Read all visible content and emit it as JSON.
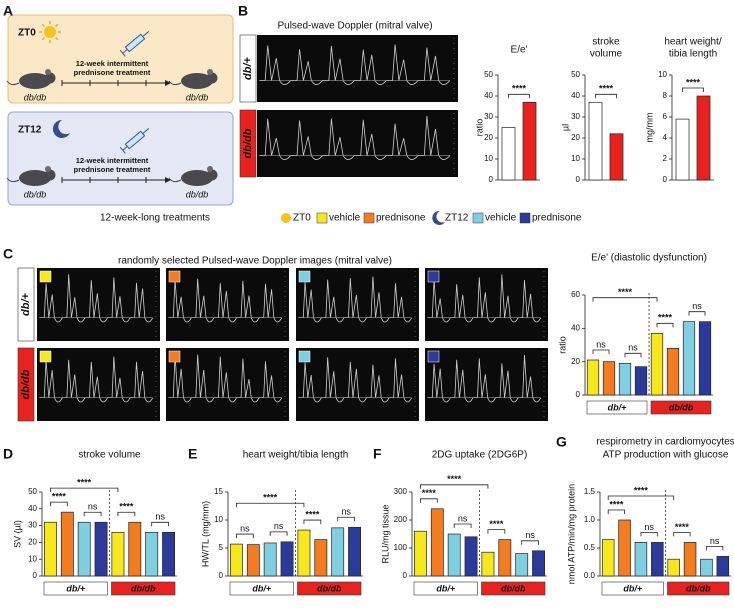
{
  "panels": [
    "A",
    "B",
    "C",
    "D",
    "E",
    "F",
    "G"
  ],
  "scheme": {
    "zt0": {
      "label": "ZT0",
      "treatment": [
        "12-week intermittent",
        "prednisone treatment"
      ],
      "mice": [
        "db/db",
        "db/db"
      ]
    },
    "zt12": {
      "label": "ZT12",
      "treatment": [
        "12-week intermittent",
        "prednisone treatment"
      ],
      "mice": [
        "db/db",
        "db/db"
      ]
    }
  },
  "doppler_b": {
    "title": "Pulsed-wave Doppler (mitral valve)",
    "rows": [
      "db/+",
      "db/db"
    ]
  },
  "legend": {
    "title": "12-week-long treatments",
    "items": [
      "ZT0",
      "vehicle",
      "prednisone",
      "ZT12",
      "vehicle",
      "prednisone"
    ]
  },
  "doppler_c": {
    "title": "randomly selected Pulsed-wave Doppler images (mitral valve)",
    "rows": [
      "db/+",
      "db/db"
    ]
  },
  "chart_data": [
    {
      "type": "bar",
      "title": [
        "E/e'"
      ],
      "ylabel": "ratio",
      "categories": [
        null,
        null
      ],
      "values": [
        25,
        37
      ],
      "colors": [
        "#ffffff",
        "#e8231f"
      ],
      "ylim": [
        0,
        50
      ],
      "yticks": [
        0,
        10,
        20,
        30,
        40,
        50
      ],
      "annotations": [
        "****"
      ]
    },
    {
      "type": "bar",
      "title": [
        "stroke",
        "volume"
      ],
      "ylabel": "µl",
      "categories": [
        null,
        null
      ],
      "values": [
        37,
        22
      ],
      "colors": [
        "#ffffff",
        "#e8231f"
      ],
      "ylim": [
        0,
        50
      ],
      "yticks": [
        0,
        10,
        20,
        30,
        40,
        50
      ],
      "annotations": [
        "****"
      ]
    },
    {
      "type": "bar",
      "title": [
        "heart weight/",
        "tibia length"
      ],
      "ylabel": "mg/mm",
      "categories": [
        null,
        null
      ],
      "values": [
        5.8,
        8
      ],
      "colors": [
        "#ffffff",
        "#e8231f"
      ],
      "ylim": [
        0,
        10
      ],
      "yticks": [
        0,
        2,
        4,
        6,
        8,
        10
      ],
      "annotations": [
        "****"
      ]
    },
    {
      "type": "bar",
      "title": [
        "E/e' (diastolic dysfunction)"
      ],
      "ylabel": "ratio",
      "categories": [
        null,
        null,
        null,
        null,
        null,
        null,
        null,
        null
      ],
      "values": [
        21,
        20,
        19,
        17,
        37,
        28,
        44,
        44
      ],
      "colors": [
        "#f7e81d",
        "#f37b20",
        "#7fcfe3",
        "#2c3a9a",
        "#f7e81d",
        "#f37b20",
        "#7fcfe3",
        "#2c3a9a"
      ],
      "ylim": [
        0,
        60
      ],
      "yticks": [
        0,
        20,
        40,
        60
      ],
      "annotations": [
        "ns",
        "ns",
        "****",
        "ns",
        "****"
      ],
      "groups": [
        "db/+",
        "db/db"
      ]
    },
    {
      "type": "bar",
      "title": [
        "stroke volume"
      ],
      "ylabel": "SV (µl)",
      "categories": [
        null,
        null,
        null,
        null,
        null,
        null,
        null,
        null
      ],
      "values": [
        32,
        38,
        32,
        32,
        26,
        32,
        26,
        26
      ],
      "colors": [
        "#f7e81d",
        "#f37b20",
        "#7fcfe3",
        "#2c3a9a",
        "#f7e81d",
        "#f37b20",
        "#7fcfe3",
        "#2c3a9a"
      ],
      "ylim": [
        0,
        50
      ],
      "yticks": [
        0,
        10,
        20,
        30,
        40,
        50
      ],
      "annotations": [
        "****",
        "ns",
        "****",
        "ns",
        "****"
      ],
      "groups": [
        "db/+",
        "db/db"
      ]
    },
    {
      "type": "bar",
      "title": [
        "heart weight/tibia length"
      ],
      "ylabel": "HW/TL (mg/mm)",
      "categories": [
        null,
        null,
        null,
        null,
        null,
        null,
        null,
        null
      ],
      "values": [
        5.7,
        5.6,
        5.9,
        6.1,
        8.2,
        6.5,
        8.6,
        8.7
      ],
      "colors": [
        "#f7e81d",
        "#f37b20",
        "#7fcfe3",
        "#2c3a9a",
        "#f7e81d",
        "#f37b20",
        "#7fcfe3",
        "#2c3a9a"
      ],
      "ylim": [
        0,
        15
      ],
      "yticks": [
        0,
        5,
        10,
        15
      ],
      "annotations": [
        "ns",
        "ns",
        "****",
        "ns",
        "****"
      ],
      "groups": [
        "db/+",
        "db/db"
      ]
    },
    {
      "type": "bar",
      "title": [
        "2DG uptake (2DG6P)"
      ],
      "ylabel": "RLU/mg tissue",
      "categories": [
        null,
        null,
        null,
        null,
        null,
        null,
        null,
        null
      ],
      "values": [
        160,
        240,
        150,
        140,
        85,
        130,
        80,
        90
      ],
      "colors": [
        "#f7e81d",
        "#f37b20",
        "#7fcfe3",
        "#2c3a9a",
        "#f7e81d",
        "#f37b20",
        "#7fcfe3",
        "#2c3a9a"
      ],
      "ylim": [
        0,
        300
      ],
      "yticks": [
        0,
        100,
        200,
        300
      ],
      "annotations": [
        "****",
        "ns",
        "****",
        "ns",
        "****"
      ],
      "groups": [
        "db/+",
        "db/db"
      ]
    },
    {
      "type": "bar",
      "title": [
        "respirometry in cardiomyocytes",
        "ATP production with glucose"
      ],
      "ylabel": "nmol ATP/min/mg protein",
      "categories": [
        null,
        null,
        null,
        null,
        null,
        null,
        null,
        null
      ],
      "values": [
        0.65,
        1.0,
        0.6,
        0.6,
        0.3,
        0.6,
        0.3,
        0.35
      ],
      "colors": [
        "#f7e81d",
        "#f37b20",
        "#7fcfe3",
        "#2c3a9a",
        "#f7e81d",
        "#f37b20",
        "#7fcfe3",
        "#2c3a9a"
      ],
      "ylim": [
        0,
        1.5
      ],
      "yticks": [
        {
          "value": 0,
          "label": "0.0"
        },
        {
          "value": 0.5,
          "label": "0.5"
        },
        {
          "value": 1,
          "label": "1.0"
        },
        {
          "value": 1.5,
          "label": "1.5"
        }
      ],
      "annotations": [
        "****",
        "ns",
        "****",
        "ns",
        "****"
      ],
      "groups": [
        "db/+",
        "db/db"
      ]
    }
  ]
}
